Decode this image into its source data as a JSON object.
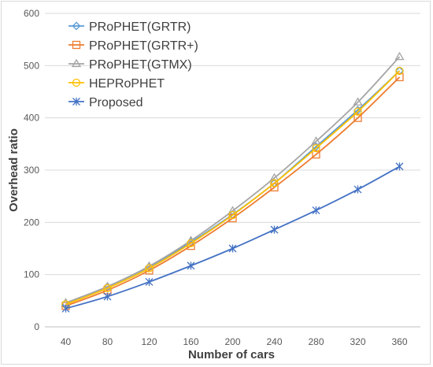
{
  "chart_data": {
    "type": "line",
    "xlabel": "Number of cars",
    "ylabel": "Overhead ratio",
    "x": [
      40,
      80,
      120,
      160,
      200,
      240,
      280,
      320,
      360
    ],
    "ylim": [
      0,
      600
    ],
    "yticks": [
      0,
      100,
      200,
      300,
      400,
      500,
      600
    ],
    "grid": true,
    "legend_position": "top-left",
    "series": [
      {
        "name": "PRoPHET(GRTR)",
        "color": "#5b9bd5",
        "marker": "diamond",
        "values": [
          45,
          77,
          115,
          162,
          215,
          275,
          345,
          415,
          490
        ]
      },
      {
        "name": "PRoPHET(GRTR+)",
        "color": "#ed7d31",
        "marker": "square",
        "values": [
          40,
          70,
          108,
          155,
          208,
          267,
          330,
          400,
          478
        ]
      },
      {
        "name": "PRoPHET(GTMX)",
        "color": "#a5a5a5",
        "marker": "triangle",
        "values": [
          46,
          77,
          116,
          165,
          222,
          285,
          355,
          430,
          517
        ]
      },
      {
        "name": "HEPRoPHET",
        "color": "#ffc000",
        "marker": "circle",
        "values": [
          43,
          74,
          112,
          160,
          214,
          275,
          342,
          412,
          490
        ]
      },
      {
        "name": "Proposed",
        "color": "#4472c4",
        "marker": "star",
        "values": [
          35,
          58,
          86,
          117,
          150,
          186,
          223,
          263,
          307
        ]
      }
    ]
  }
}
